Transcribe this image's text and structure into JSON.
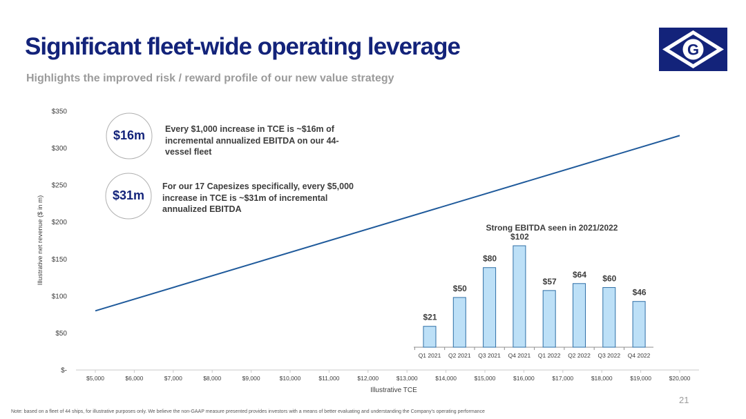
{
  "slide": {
    "title": "Significant fleet-wide operating leverage",
    "subtitle": "Highlights the improved risk / reward profile of our new value strategy",
    "page_number": "21",
    "footnote": "Note: based on a fleet of 44 ships, for illustrative purposes only. We believe the non-GAAP measure presented provides investors with a means of better evaluating and understanding the Company’s operating performance",
    "logo_letter": "G"
  },
  "callouts": [
    {
      "value": "$16m",
      "text": "Every $1,000 increase in TCE is ~$16m of incremental annualized EBITDA on our 44-vessel fleet"
    },
    {
      "value": "$31m",
      "text": "For our 17 Capesizes specifically, every $5,000 increase in TCE is ~$31m of incremental annualized EBITDA"
    }
  ],
  "colors": {
    "title": "#13237a",
    "line": "#1f5a9b",
    "bar_fill": "#bde0f7",
    "bar_stroke": "#2e6ea6",
    "logo_bg": "#13237a"
  },
  "chart_data": [
    {
      "type": "line",
      "xlabel": "Illustrative TCE",
      "ylabel": "Illustrative net revenue ($ in m)",
      "x_ticks": [
        5000,
        6000,
        7000,
        8000,
        9000,
        10000,
        11000,
        12000,
        13000,
        14000,
        15000,
        16000,
        17000,
        18000,
        19000,
        20000
      ],
      "x_tick_labels": [
        "$5,000",
        "$6,000",
        "$7,000",
        "$8,000",
        "$9,000",
        "$10,000",
        "$11,000",
        "$12,000",
        "$13,000",
        "$14,000",
        "$15,000",
        "$16,000",
        "$17,000",
        "$18,000",
        "$19,000",
        "$20,000"
      ],
      "y_ticks": [
        0,
        50,
        100,
        150,
        200,
        250,
        300,
        350
      ],
      "y_tick_labels": [
        "$-",
        "$50",
        "$100",
        "$150",
        "$200",
        "$250",
        "$300",
        "$350"
      ],
      "ylim": [
        0,
        350
      ],
      "series": [
        {
          "x": [
            5000,
            20000
          ],
          "y": [
            80,
            317
          ]
        }
      ]
    },
    {
      "type": "bar",
      "title": "Strong EBITDA seen in 2021/2022",
      "categories": [
        "Q1 2021",
        "Q2 2021",
        "Q3 2021",
        "Q4 2021",
        "Q1 2022",
        "Q2 2022",
        "Q3 2022",
        "Q4 2022"
      ],
      "values": [
        21,
        50,
        80,
        102,
        57,
        64,
        60,
        46
      ],
      "value_labels": [
        "$21",
        "$50",
        "$80",
        "$102",
        "$57",
        "$64",
        "$60",
        "$46"
      ]
    }
  ]
}
